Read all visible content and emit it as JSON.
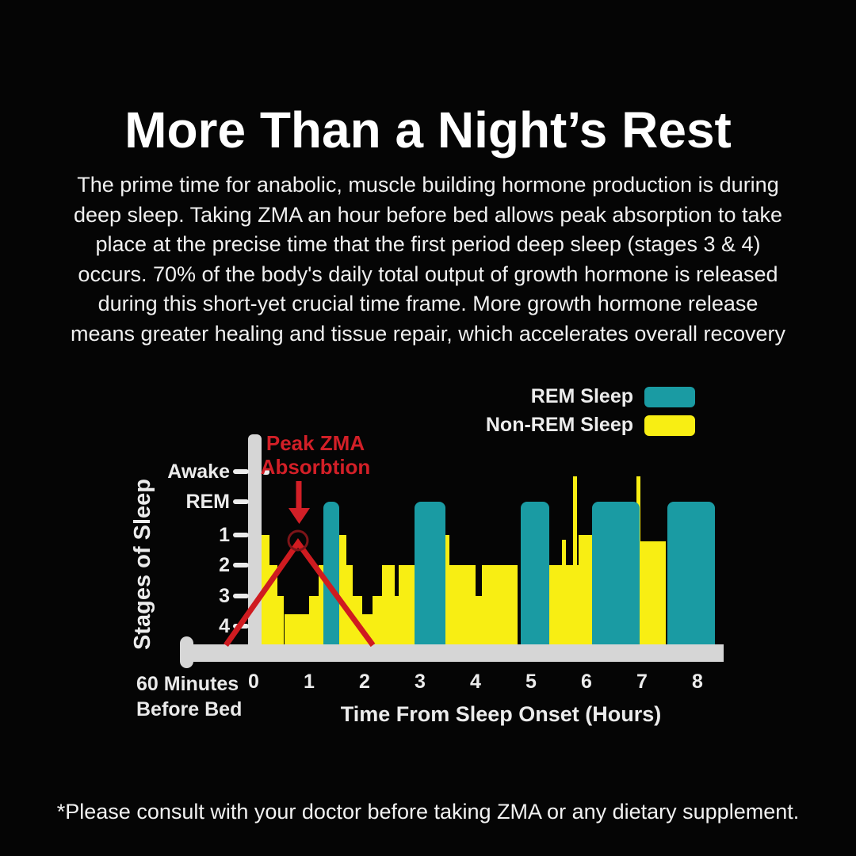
{
  "title": "More Than a Night’s Rest",
  "paragraph_lines": [
    "The prime time for anabolic, muscle building hormone production is during",
    "deep sleep. Taking ZMA an hour before bed allows peak absorption to take",
    "place at the precise time that the first period deep sleep (stages 3 & 4)",
    "occurs. 70% of the body's daily total output of growth hormone is released",
    "during this short-yet crucial time frame. More growth hormone release",
    "means greater healing and tissue repair, which accelerates overall recovery"
  ],
  "footnote": "*Please consult with your doctor before taking ZMA or any dietary supplement.",
  "legend": [
    {
      "label": "REM Sleep",
      "color": "#1a9ba3"
    },
    {
      "label": "Non-REM Sleep",
      "color": "#f8ee13"
    }
  ],
  "colors": {
    "background": "#050505",
    "rem": "#1a9ba3",
    "non_rem": "#f8ee13",
    "axis": "#d6d6d6",
    "annotation_red": "#d21f27",
    "curve_red": "#cf1b20",
    "circle_red": "#7c1418",
    "text": "#f2f2f2"
  },
  "chart_data": {
    "type": "bar",
    "title": "",
    "xlabel": "Time From Sleep Onset (Hours)",
    "ylabel": "Stages of Sleep",
    "x_ticks": [
      "0",
      "1",
      "2",
      "3",
      "4",
      "5",
      "6",
      "7",
      "8"
    ],
    "x_pre_label_line1": "60 Minutes",
    "x_pre_label_line2": "Before Bed",
    "y_ticks": [
      "Awake",
      "REM",
      "1",
      "2",
      "3",
      "4"
    ],
    "xlim": [
      0,
      8
    ],
    "grid": false,
    "legend_position": "top-right",
    "series": [
      {
        "name": "Non-REM Sleep",
        "color": "#f8ee13",
        "segments": [
          {
            "from": 0.13,
            "to": 0.29,
            "stage": 1
          },
          {
            "from": 0.29,
            "to": 0.43,
            "stage": 2
          },
          {
            "from": 0.43,
            "to": 0.55,
            "stage": 3
          },
          {
            "from": 0.55,
            "to": 1.0,
            "stage": 3.6
          },
          {
            "from": 1.0,
            "to": 1.17,
            "stage": 3
          },
          {
            "from": 1.17,
            "to": 1.26,
            "stage": 2
          },
          {
            "from": 1.54,
            "to": 1.67,
            "stage": 1
          },
          {
            "from": 1.67,
            "to": 1.79,
            "stage": 2
          },
          {
            "from": 1.79,
            "to": 1.96,
            "stage": 3
          },
          {
            "from": 1.96,
            "to": 2.14,
            "stage": 3.6
          },
          {
            "from": 2.14,
            "to": 2.31,
            "stage": 3
          },
          {
            "from": 2.31,
            "to": 2.54,
            "stage": 2
          },
          {
            "from": 2.54,
            "to": 2.61,
            "stage": 3
          },
          {
            "from": 2.61,
            "to": 2.9,
            "stage": 2
          },
          {
            "from": 3.46,
            "to": 3.53,
            "stage": 1
          },
          {
            "from": 3.53,
            "to": 4.0,
            "stage": 2
          },
          {
            "from": 4.0,
            "to": 4.11,
            "stage": 3
          },
          {
            "from": 4.11,
            "to": 4.76,
            "stage": 2
          },
          {
            "from": 5.33,
            "to": 5.86,
            "stage": 2
          },
          {
            "from": 5.86,
            "to": 6.1,
            "stage": 1
          },
          {
            "from": 6.96,
            "to": 7.43,
            "stage": 1.2
          }
        ]
      },
      {
        "name": "REM Sleep",
        "color": "#1a9ba3",
        "segments": [
          {
            "from": 1.26,
            "to": 1.54
          },
          {
            "from": 2.9,
            "to": 3.46
          },
          {
            "from": 4.81,
            "to": 5.33
          },
          {
            "from": 6.1,
            "to": 6.96
          },
          {
            "from": 7.46,
            "to": 8.31
          }
        ]
      }
    ],
    "wake_spikes": [
      {
        "hour": 5.59,
        "to_level": "1"
      },
      {
        "hour": 5.79,
        "to_level": "awake"
      },
      {
        "hour": 6.93,
        "to_level": "awake"
      }
    ],
    "annotation": {
      "text_line1": "Peak ZMA",
      "text_line2": "Absorbtion",
      "peak_hour": 0.8,
      "base_from_hour": -0.5,
      "base_to_hour": 2.15
    }
  }
}
